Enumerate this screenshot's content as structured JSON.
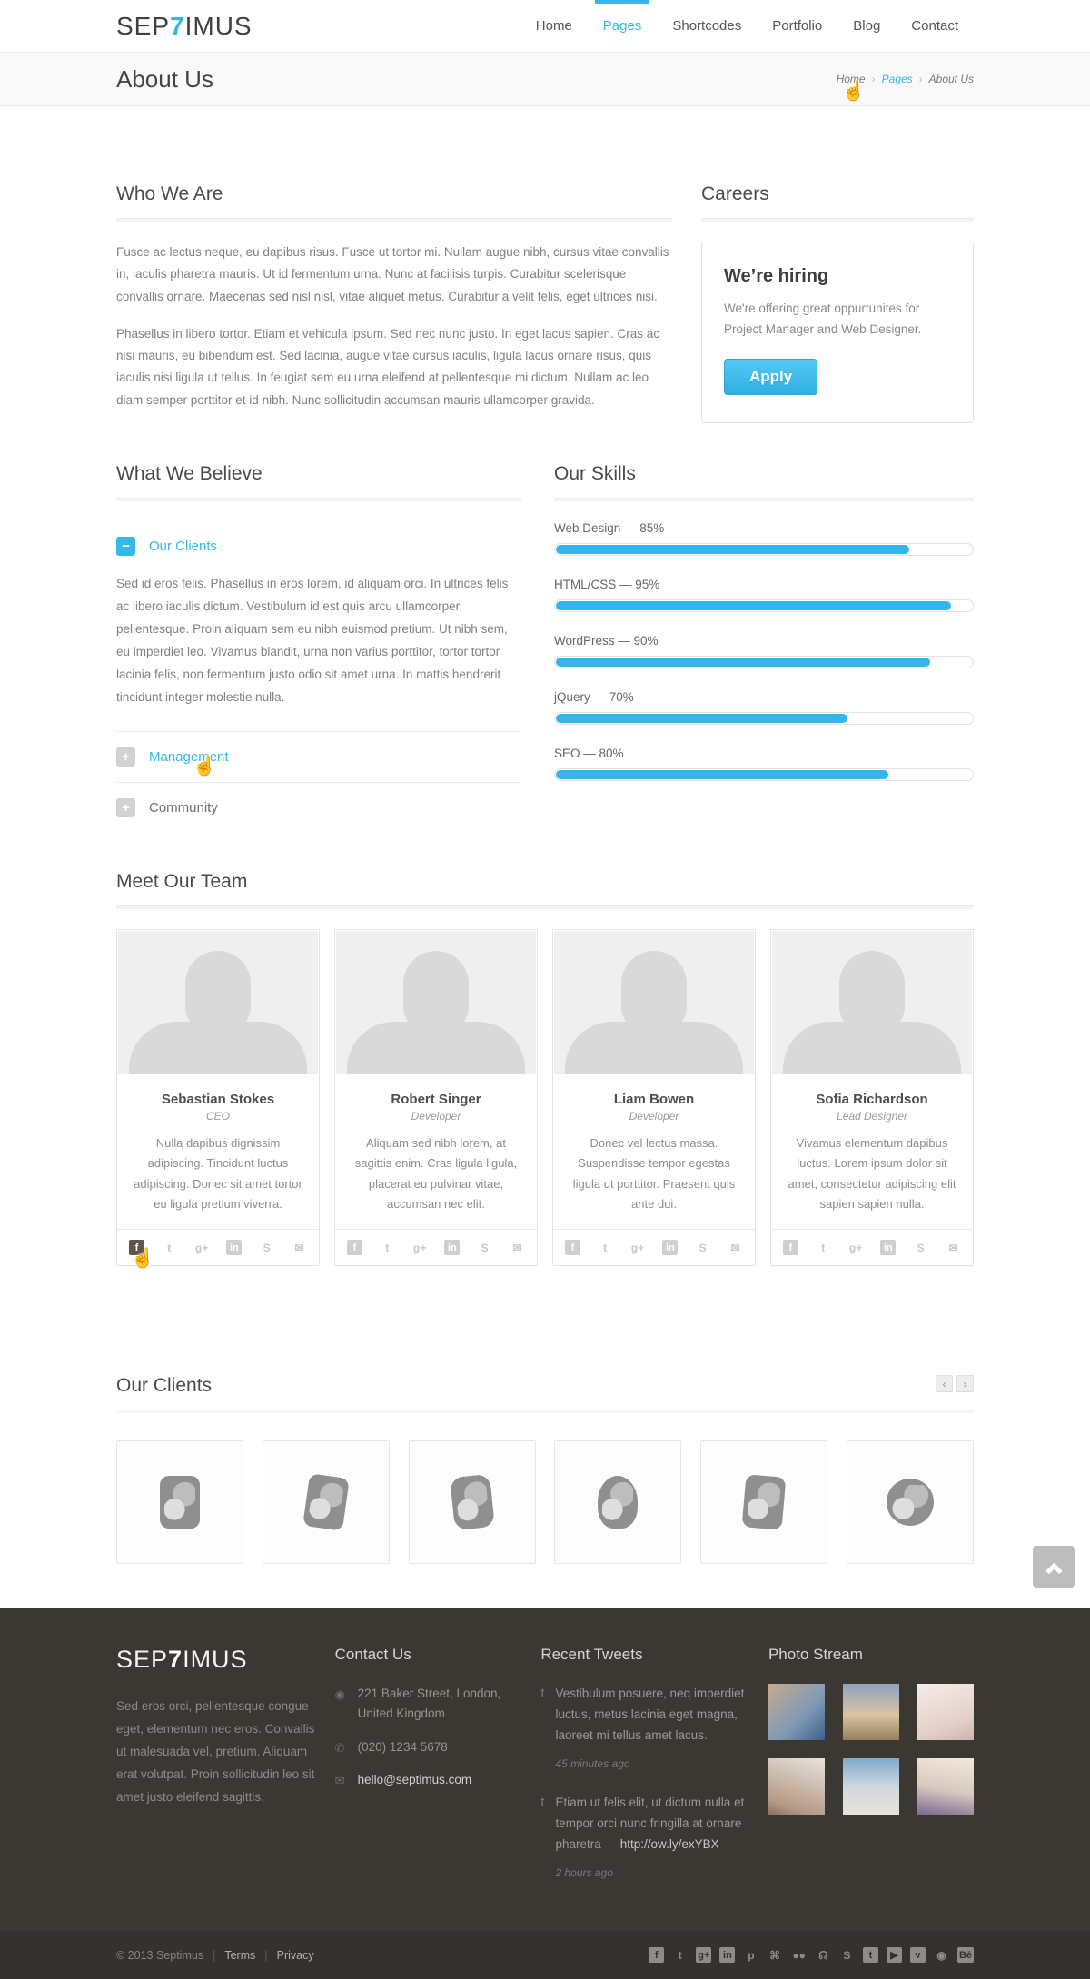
{
  "header": {
    "logo": {
      "prefix": "SEP",
      "accent": "7",
      "suffix": "IMUS"
    },
    "nav": [
      {
        "label": "Home"
      },
      {
        "label": "Pages"
      },
      {
        "label": "Shortcodes"
      },
      {
        "label": "Portfolio"
      },
      {
        "label": "Blog"
      },
      {
        "label": "Contact"
      }
    ]
  },
  "page_header": {
    "title": "About Us",
    "breadcrumb": {
      "home": "Home",
      "section": "Pages",
      "current": "About Us",
      "separator": "›"
    }
  },
  "who_we_are": {
    "title": "Who We Are",
    "paragraph1": "Fusce ac lectus neque, eu dapibus risus. Fusce ut tortor mi. Nullam augue nibh, cursus vitae convallis in, iaculis pharetra mauris. Ut id fermentum urna. Nunc at facilisis turpis. Curabitur scelerisque convallis ornare. Maecenas sed nisl nisl, vitae aliquet metus. Curabitur a velit felis, eget ultrices nisi.",
    "paragraph2": "Phasellus in libero tortor. Etiam et vehicula ipsum. Sed nec nunc justo. In eget lacus sapien. Cras ac nisi mauris, eu bibendum est. Sed lacinia, augue vitae cursus iaculis, ligula lacus ornare risus, quis iaculis nisi ligula ut tellus. In feugiat sem eu urna eleifend at pellentesque mi dictum. Nullam ac leo diam semper porttitor et id nibh. Nunc sollicitudin accumsan mauris ullamcorper gravida."
  },
  "careers": {
    "title": "Careers",
    "box_title": "We’re hiring",
    "box_text": "We're offering great oppurtunites for Project Manager and Web Designer.",
    "apply_label": "Apply"
  },
  "believe": {
    "title": "What We Believe",
    "items": [
      {
        "label": "Our Clients",
        "icon": "−",
        "state": "expanded",
        "body": "Sed id eros felis. Phasellus in eros lorem, id aliquam orci. In ultrices felis ac libero iaculis dictum. Vestibulum id est quis arcu ullamcorper pellentesque. Proin aliquam sem eu nibh euismod pretium. Ut nibh sem, eu imperdiet leo. Vivamus blandit, urna non varius porttitor, tortor tortor lacinia felis, non fermentum justo odio sit amet urna. In mattis hendrerit tincidunt integer molestie nulla."
      },
      {
        "label": "Management",
        "icon": "+",
        "state": "collapsed-hovered"
      },
      {
        "label": "Community",
        "icon": "+",
        "state": "collapsed"
      }
    ]
  },
  "skills": {
    "title": "Our Skills",
    "bars": [
      {
        "label": "Web Design — 85%",
        "percent": 85
      },
      {
        "label": "HTML/CSS — 95%",
        "percent": 95
      },
      {
        "label": "WordPress — 90%",
        "percent": 90
      },
      {
        "label": "jQuery — 70%",
        "percent": 70
      },
      {
        "label": "SEO — 80%",
        "percent": 80
      }
    ]
  },
  "team": {
    "title": "Meet Our Team",
    "social_icons": [
      {
        "name": "facebook",
        "glyph": "f"
      },
      {
        "name": "twitter",
        "glyph": "t"
      },
      {
        "name": "google-plus",
        "glyph": "g+"
      },
      {
        "name": "linkedin",
        "glyph": "in"
      },
      {
        "name": "skype",
        "glyph": "S"
      },
      {
        "name": "email",
        "glyph": "✉"
      }
    ],
    "members": [
      {
        "name": "Sebastian Stokes",
        "role": "CEO",
        "bio": "Nulla dapibus dignissim adipiscing. Tincidunt luctus adipiscing. Donec sit amet tortor eu ligula pretium viverra."
      },
      {
        "name": "Robert Singer",
        "role": "Developer",
        "bio": "Aliquam sed nibh lorem, at sagittis enim. Cras ligula ligula, placerat eu pulvinar vitae, accumsan nec elit."
      },
      {
        "name": "Liam Bowen",
        "role": "Developer",
        "bio": "Donec vel lectus massa. Suspendisse tempor egestas ligula ut porttitor. Praesent quis ante dui."
      },
      {
        "name": "Sofia Richardson",
        "role": "Lead Designer",
        "bio": "Vivamus elementum dapibus luctus. Lorem ipsum dolor sit amet, consectetur adipiscing elit sapien sapien nulla."
      }
    ]
  },
  "clients": {
    "title": "Our Clients",
    "prev_glyph": "‹",
    "next_glyph": "›",
    "logo_count": 6
  },
  "footer": {
    "logo": {
      "prefix": "SEP",
      "accent": "7",
      "suffix": "IMUS"
    },
    "about": "Sed eros orci, pellentesque congue eget, elementum nec eros. Convallis ut malesuada vel, pretium. Aliquam erat volutpat. Proin sollicitudin leo sit amet justo eleifend sagittis.",
    "contact": {
      "title": "Contact Us",
      "address": "221 Baker Street, London, United Kingdom",
      "phone": "(020) 1234 5678",
      "email": "hello@septimus.com"
    },
    "tweets": {
      "title": "Recent Tweets",
      "items": [
        {
          "text": "Vestibulum posuere, neq imperdiet luctus, metus lacinia eget magna, laoreet mi tellus amet lacus.",
          "link": "",
          "time": "45 minutes ago"
        },
        {
          "text": "Etiam ut felis elit, ut dictum nulla et tempor orci nunc fringilla at ornare pharetra — ",
          "link": "http://ow.ly/exYBX",
          "time": "2 hours ago"
        }
      ]
    },
    "photo_stream": {
      "title": "Photo Stream",
      "count": 6
    },
    "bottom": {
      "copyright": "© 2013 Septimus",
      "separator": "|",
      "terms": "Terms",
      "privacy": "Privacy",
      "social": [
        {
          "name": "facebook",
          "glyph": "f",
          "tile": true
        },
        {
          "name": "twitter",
          "glyph": "t",
          "tile": false
        },
        {
          "name": "google-plus",
          "glyph": "g+",
          "tile": true
        },
        {
          "name": "linkedin",
          "glyph": "in",
          "tile": true
        },
        {
          "name": "pinterest",
          "glyph": "p",
          "tile": false
        },
        {
          "name": "github",
          "glyph": "⌘",
          "tile": false
        },
        {
          "name": "flickr",
          "glyph": "●●",
          "tile": false
        },
        {
          "name": "rss",
          "glyph": "☊",
          "tile": false
        },
        {
          "name": "skype",
          "glyph": "S",
          "tile": false
        },
        {
          "name": "tumblr",
          "glyph": "t",
          "tile": true
        },
        {
          "name": "youtube",
          "glyph": "▶",
          "tile": true
        },
        {
          "name": "vimeo",
          "glyph": "v",
          "tile": true
        },
        {
          "name": "dribbble",
          "glyph": "◉",
          "tile": false
        },
        {
          "name": "behance",
          "glyph": "Bē",
          "tile": true
        }
      ]
    }
  },
  "colors": {
    "accent": "#35b8e9",
    "footer_bg": "#3b3834",
    "footer_bottom_bg": "#34312e"
  }
}
